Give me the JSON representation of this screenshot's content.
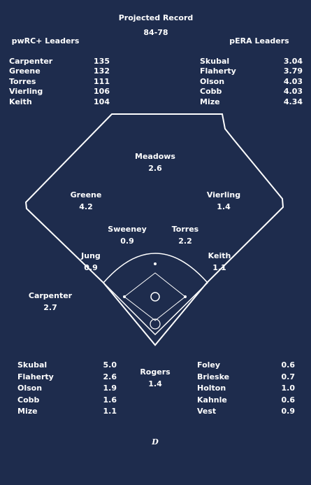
{
  "header": {
    "title": "Projected Record",
    "record": "84-78"
  },
  "batting_leaders": {
    "title": "pwRC+ Leaders",
    "rows": [
      [
        "Carpenter",
        "135"
      ],
      [
        "Greene",
        "132"
      ],
      [
        "Torres",
        "111"
      ],
      [
        "Vierling",
        "106"
      ],
      [
        "Keith",
        "104"
      ]
    ]
  },
  "pitching_leaders": {
    "title": "pERA Leaders",
    "rows": [
      [
        "Skubal",
        "3.04"
      ],
      [
        "Flaherty",
        "3.79"
      ],
      [
        "Olson",
        "4.03"
      ],
      [
        "Cobb",
        "4.03"
      ],
      [
        "Mize",
        "4.34"
      ]
    ]
  },
  "field": [
    {
      "name": "Meadows",
      "value": "2.6",
      "color": "#8fd18a"
    },
    {
      "name": "Greene",
      "value": "4.2",
      "color": "#8fd18a"
    },
    {
      "name": "Vierling",
      "value": "1.4",
      "color": "#f2a3a3"
    },
    {
      "name": "Sweeney",
      "value": "0.9",
      "color": "#f2a3a3"
    },
    {
      "name": "Torres",
      "value": "2.2",
      "color": "#ffffff"
    },
    {
      "name": "Jung",
      "value": "0.9",
      "color": "#f2a3a3"
    },
    {
      "name": "Keith",
      "value": "1.1",
      "color": "#f2a3a3"
    },
    {
      "name": "Carpenter",
      "value": "2.7",
      "color": "#8fd18a"
    },
    {
      "name": "Rogers",
      "value": "1.4",
      "color": "#f2a3a3"
    }
  ],
  "rotation": [
    {
      "name": "Skubal",
      "value": "5.0",
      "color": "#8fd18a"
    },
    {
      "name": "Flaherty",
      "value": "2.6",
      "color": "#8fd18a"
    },
    {
      "name": "Olson",
      "value": "1.9",
      "color": "#ffffff"
    },
    {
      "name": "Cobb",
      "value": "1.6",
      "color": "#ffffff"
    },
    {
      "name": "Mize",
      "value": "1.1",
      "color": "#f2a3a3"
    }
  ],
  "bullpen": [
    {
      "name": "Foley",
      "value": "0.6",
      "color": "#f2a3a3"
    },
    {
      "name": "Brieske",
      "value": "0.7",
      "color": "#ffffff"
    },
    {
      "name": "Holton",
      "value": "1.0",
      "color": "#8fd18a"
    },
    {
      "name": "Kahnle",
      "value": "0.6",
      "color": "#f2a3a3"
    },
    {
      "name": "Vest",
      "value": "0.9",
      "color": "#8fd18a"
    }
  ],
  "logo": "D"
}
